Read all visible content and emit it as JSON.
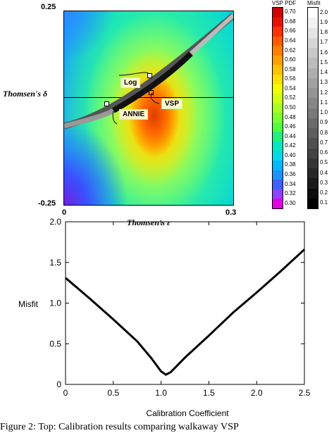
{
  "top_figure": {
    "y_top_tick": "0.25",
    "y_bottom_tick": "-0.25",
    "x_left_tick": "0",
    "x_right_tick": "0.3",
    "ylabel": "Thomsen's δ",
    "xlabel": "Thomsen's ε",
    "labels": {
      "log": "Log",
      "vsp": "VSP",
      "annie": "ANNIE"
    },
    "colorbar_vsp": {
      "title": "VSP PDF",
      "ticks": [
        "0.70",
        "0.68",
        "0.66",
        "0.64",
        "0.62",
        "0.60",
        "0.58",
        "0.56",
        "0.54",
        "0.52",
        "0.50",
        "0.48",
        "0.46",
        "0.44",
        "0.42",
        "0.40",
        "0.38",
        "0.36",
        "0.34",
        "0.32",
        "0.30"
      ],
      "colors": [
        "#d00000",
        "#e81000",
        "#ff3000",
        "#ff5a00",
        "#ff8000",
        "#ffa000",
        "#ffc000",
        "#ffe000",
        "#f0ff00",
        "#d0ff10",
        "#a8ff20",
        "#80ff30",
        "#50ff40",
        "#20f080",
        "#00e8c0",
        "#00d8e8",
        "#00b8ff",
        "#2090ff",
        "#4060ff",
        "#9040ff",
        "#e000e0"
      ]
    },
    "colorbar_misfit": {
      "title": "Misfit",
      "ticks": [
        "2.0",
        "1.9",
        "1.8",
        "1.7",
        "1.6",
        "1.5",
        "1.4",
        "1.3",
        "1.2",
        "1.1",
        "1.0",
        "0.9",
        "0.8",
        "0.7",
        "0.6",
        "0.5",
        "0.4",
        "0.3",
        "0.2",
        "0.1"
      ]
    }
  },
  "chart_data": {
    "type": "line",
    "xlabel": "Calibration Coefficient",
    "ylabel": "Misfit",
    "xlim": [
      0,
      2.5
    ],
    "ylim": [
      0,
      2.0
    ],
    "x_ticks": [
      "0",
      "0.5",
      "1.0",
      "1.5",
      "2.0",
      "2.5"
    ],
    "y_ticks": [
      "0",
      "0.5",
      "1.0",
      "1.5",
      "2.0"
    ],
    "series": [
      {
        "x": [
          0,
          0.25,
          0.5,
          0.75,
          0.9,
          1.0,
          1.05,
          1.1,
          1.25,
          1.5,
          1.75,
          2.0,
          2.25,
          2.5
        ],
        "y": [
          1.31,
          1.06,
          0.8,
          0.53,
          0.32,
          0.16,
          0.12,
          0.15,
          0.33,
          0.6,
          0.88,
          1.13,
          1.39,
          1.66
        ]
      }
    ]
  },
  "caption": "Figure 2:   Top: Calibration results comparing walkaway VSP"
}
